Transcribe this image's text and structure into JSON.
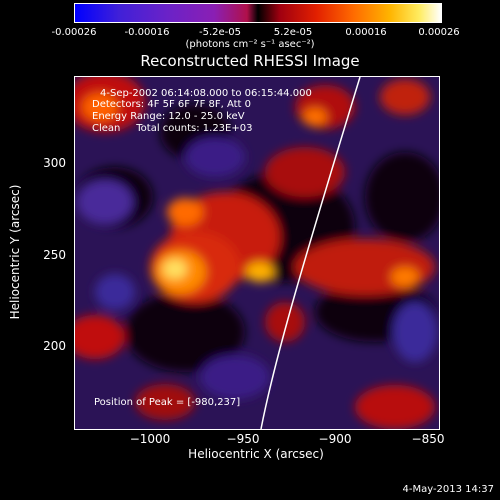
{
  "colorbar": {
    "ticks": [
      "-0.00026",
      "-0.00016",
      "-5.2e-05",
      "5.2e-05",
      "0.00016",
      "0.00026"
    ],
    "unit": "(photons cm⁻² s⁻¹ asec⁻²)"
  },
  "title": "Reconstructed RHESSI Image",
  "annotations": {
    "time_range": "4-Sep-2002 06:14:08.000 to 06:15:44.000",
    "detectors": "Detectors: 4F 5F 6F 7F 8F, Att 0",
    "energy": "Energy Range: 12.0 - 25.0 keV",
    "clean": "Clean     Total counts: 1.23E+03",
    "peak": "Position of Peak = [-980,237]"
  },
  "axes": {
    "xlabel": "Heliocentric X (arcsec)",
    "ylabel": "Heliocentric Y (arcsec)",
    "xticks": [
      "−1000",
      "−950",
      "−900",
      "−850"
    ],
    "yticks": [
      "300",
      "250",
      "200"
    ]
  },
  "footer_date": "4-May-2013 14:37"
}
